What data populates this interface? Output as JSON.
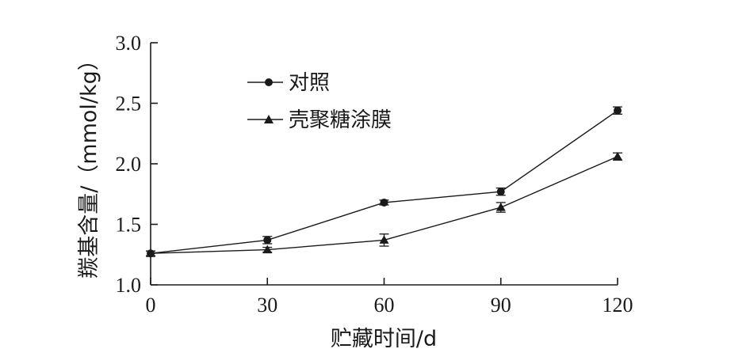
{
  "chart_data": {
    "type": "line",
    "xlabel": "贮藏时间/d",
    "ylabel": "羰基含量/（mmol/kg）",
    "x": [
      0,
      30,
      60,
      90,
      120
    ],
    "x_ticks": [
      "0",
      "30",
      "60",
      "90",
      "120"
    ],
    "y_ticks": [
      "1.0",
      "1.5",
      "2.0",
      "2.5",
      "3.0"
    ],
    "xlim": [
      0,
      120
    ],
    "ylim": [
      1.0,
      3.0
    ],
    "grid": false,
    "legend_position": "top-left",
    "series": [
      {
        "name": "对照",
        "marker": "circle",
        "values": [
          1.26,
          1.37,
          1.68,
          1.77,
          2.44
        ],
        "errors": [
          0.02,
          0.03,
          0.02,
          0.03,
          0.03
        ]
      },
      {
        "name": "壳聚糖涂膜",
        "marker": "triangle",
        "values": [
          1.26,
          1.29,
          1.37,
          1.64,
          2.06
        ],
        "errors": [
          0.02,
          0.02,
          0.05,
          0.04,
          0.03
        ]
      }
    ],
    "colors": {
      "line": "#1a1a1a",
      "background": "#ffffff"
    }
  }
}
